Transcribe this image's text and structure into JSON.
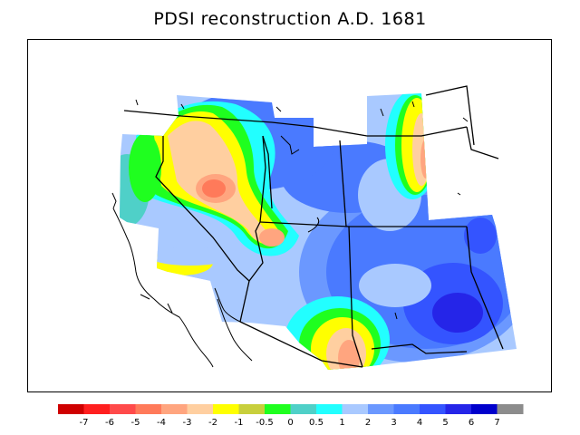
{
  "title": "PDSI reconstruction A.D. 1681",
  "colors": {
    "background": "#ffffff",
    "outline": "#000000",
    "na": "#8c8c8c"
  },
  "legend": {
    "swatches": [
      {
        "color": "#cf0000"
      },
      {
        "color": "#ff1f1f"
      },
      {
        "color": "#ff4a4a"
      },
      {
        "color": "#ff7a5a"
      },
      {
        "color": "#ffa57f"
      },
      {
        "color": "#ffcfa0"
      },
      {
        "color": "#ffff00"
      },
      {
        "color": "#c8cf3c"
      },
      {
        "color": "#1fff1f"
      },
      {
        "color": "#4fd0c8"
      },
      {
        "color": "#22ffff"
      },
      {
        "color": "#a9c9ff"
      },
      {
        "color": "#6b98ff"
      },
      {
        "color": "#4a7aff"
      },
      {
        "color": "#3454ff"
      },
      {
        "color": "#2525e8"
      },
      {
        "color": "#0000cc"
      },
      {
        "color": "#8c8c8c"
      }
    ],
    "tick_labels": [
      "-7",
      "-6",
      "-5",
      "-4",
      "-3",
      "-2",
      "-1",
      "-0.5",
      "0",
      "0.5",
      "1",
      "2",
      "3",
      "4",
      "5",
      "6",
      "7"
    ]
  }
}
